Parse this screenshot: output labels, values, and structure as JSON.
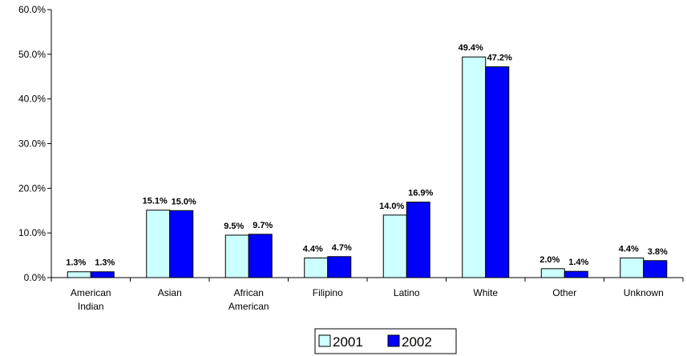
{
  "chart_data": {
    "type": "bar",
    "categories": [
      [
        "American",
        "Indian"
      ],
      [
        "Asian"
      ],
      [
        "African",
        "American"
      ],
      [
        "Filipino"
      ],
      [
        "Latino"
      ],
      [
        "White"
      ],
      [
        "Other"
      ],
      [
        "Unknown"
      ]
    ],
    "series": [
      {
        "name": "2001",
        "values": [
          1.3,
          15.1,
          9.5,
          4.4,
          14.0,
          49.4,
          2.0,
          4.4
        ],
        "labels": [
          "1.3%",
          "15.1%",
          "9.5%",
          "4.4%",
          "14.0%",
          "49.4%",
          "2.0%",
          "4.4%"
        ],
        "color": "#CCFFFF"
      },
      {
        "name": "2002",
        "values": [
          1.3,
          15.0,
          9.7,
          4.7,
          16.9,
          47.2,
          1.4,
          3.8
        ],
        "labels": [
          "1.3%",
          "15.0%",
          "9.7%",
          "4.7%",
          "16.9%",
          "47.2%",
          "1.4%",
          "3.8%"
        ],
        "color": "#0000FF"
      }
    ],
    "yticks": [
      "0.0%",
      "10.0%",
      "20.0%",
      "30.0%",
      "40.0%",
      "50.0%",
      "60.0%"
    ],
    "ylim": [
      0,
      60
    ],
    "grid": false,
    "legend_position": "bottom-center",
    "title": "",
    "xlabel": "",
    "ylabel": ""
  }
}
